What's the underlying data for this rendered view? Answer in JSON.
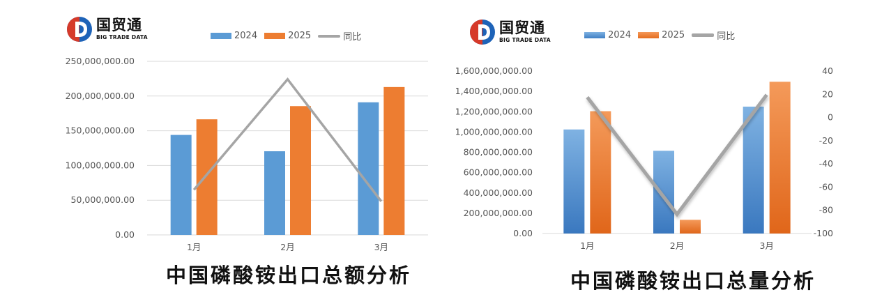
{
  "brand": {
    "name": "国贸通",
    "subtitle": "BIG TRADE DATA",
    "colors": {
      "red": "#d63a2a",
      "blue": "#1e63b8"
    }
  },
  "colors": {
    "series_2024": "#5b9bd5",
    "series_2025": "#ed7d31",
    "yoy": "#a5a5a5",
    "grid": "#d9d9d9"
  },
  "chart_data": [
    {
      "type": "bar",
      "title": "中国磷酸铵出口总额分析",
      "categories": [
        "1月",
        "2月",
        "3月"
      ],
      "series": [
        {
          "name": "2024",
          "type": "bar",
          "axis": "left",
          "values": [
            144000000,
            120500000,
            191000000
          ]
        },
        {
          "name": "2025",
          "type": "bar",
          "axis": "left",
          "values": [
            166500000,
            185500000,
            213000000
          ]
        },
        {
          "name": "同比",
          "type": "line",
          "axis": "right",
          "values": [
            15.6,
            53.8,
            11.6
          ]
        }
      ],
      "ylim": [
        0,
        250000000
      ],
      "y_ticks": [
        "0.00",
        "50,000,000.00",
        "100,000,000.00",
        "150,000,000.00",
        "200,000,000.00",
        "250,000,000.00"
      ],
      "y2lim": [
        0,
        60
      ],
      "y2_ticks": [
        "0",
        "10",
        "20",
        "30",
        "40",
        "50",
        "60"
      ],
      "grid": true,
      "legend": "top"
    },
    {
      "type": "bar",
      "title": "中国磷酸铵出口总量分析",
      "categories": [
        "1月",
        "2月",
        "3月"
      ],
      "series": [
        {
          "name": "2024",
          "type": "bar",
          "axis": "left",
          "values": [
            1025000000,
            815000000,
            1250000000
          ]
        },
        {
          "name": "2025",
          "type": "bar",
          "axis": "left",
          "values": [
            1205000000,
            135000000,
            1495000000
          ]
        },
        {
          "name": "同比",
          "type": "line",
          "axis": "right",
          "values": [
            17.5,
            -83.4,
            19.6
          ]
        }
      ],
      "ylim": [
        0,
        1600000000
      ],
      "y_ticks": [
        "0.00",
        "200,000,000.00",
        "400,000,000.00",
        "600,000,000.00",
        "800,000,000.00",
        "1,000,000,000.00",
        "1,200,000,000.00",
        "1,400,000,000.00",
        "1,600,000,000.00"
      ],
      "y2lim": [
        -100,
        40
      ],
      "y2_ticks": [
        "-100",
        "-80",
        "-60",
        "-40",
        "-20",
        "0",
        "20",
        "40"
      ],
      "grid": false,
      "legend": "top"
    }
  ]
}
